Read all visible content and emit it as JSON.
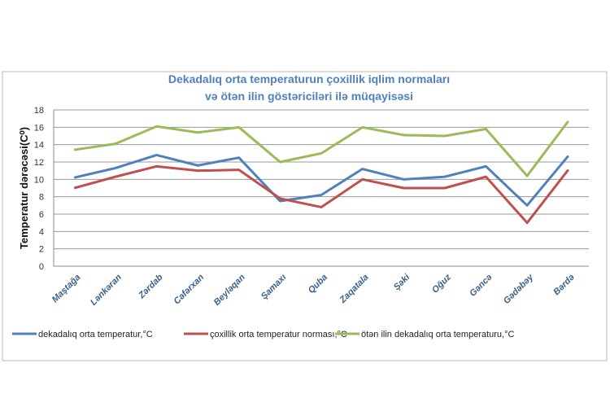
{
  "chart_data": {
    "type": "line",
    "title": "Dekadalıq orta temperaturun çoxillik iqlim normaları",
    "subtitle": "və ötən ilin göstəriciləri ilə müqayisəsi",
    "ylabel": "Temperatur dərəcəsi(C⁰)",
    "xlabel": "",
    "ylim": [
      0,
      18
    ],
    "yticks": [
      0,
      2,
      4,
      6,
      8,
      10,
      12,
      14,
      16,
      18
    ],
    "grid": true,
    "legend": "bottom",
    "categories": [
      "Maştağa",
      "Lənkəran",
      "Zərdab",
      "Cəfərxan",
      "Beyləqan",
      "Şamaxı",
      "Quba",
      "Zaqatala",
      "Şəki",
      "Oğuz",
      "Gəncə",
      "Gədəbəy",
      "Bərdə"
    ],
    "series": [
      {
        "name": "dekadalıq orta temperatur,°C",
        "color": "#4f81bd",
        "values": [
          10.2,
          11.3,
          12.8,
          11.6,
          12.5,
          7.5,
          8.2,
          11.2,
          10.0,
          10.3,
          11.5,
          7.0,
          12.7
        ]
      },
      {
        "name": "çoxillik orta temperatur norması,°C",
        "color": "#c0504d",
        "values": [
          9.0,
          10.3,
          11.5,
          11.0,
          11.1,
          7.8,
          6.8,
          10.0,
          9.0,
          9.0,
          10.3,
          5.0,
          11.1
        ]
      },
      {
        "name": "ötən ilin dekadalıq orta temperaturu,°C",
        "color": "#9bbb59",
        "values": [
          13.4,
          14.1,
          16.1,
          15.4,
          16.0,
          12.0,
          13.0,
          16.0,
          15.1,
          15.0,
          15.8,
          10.4,
          16.7
        ]
      }
    ]
  }
}
